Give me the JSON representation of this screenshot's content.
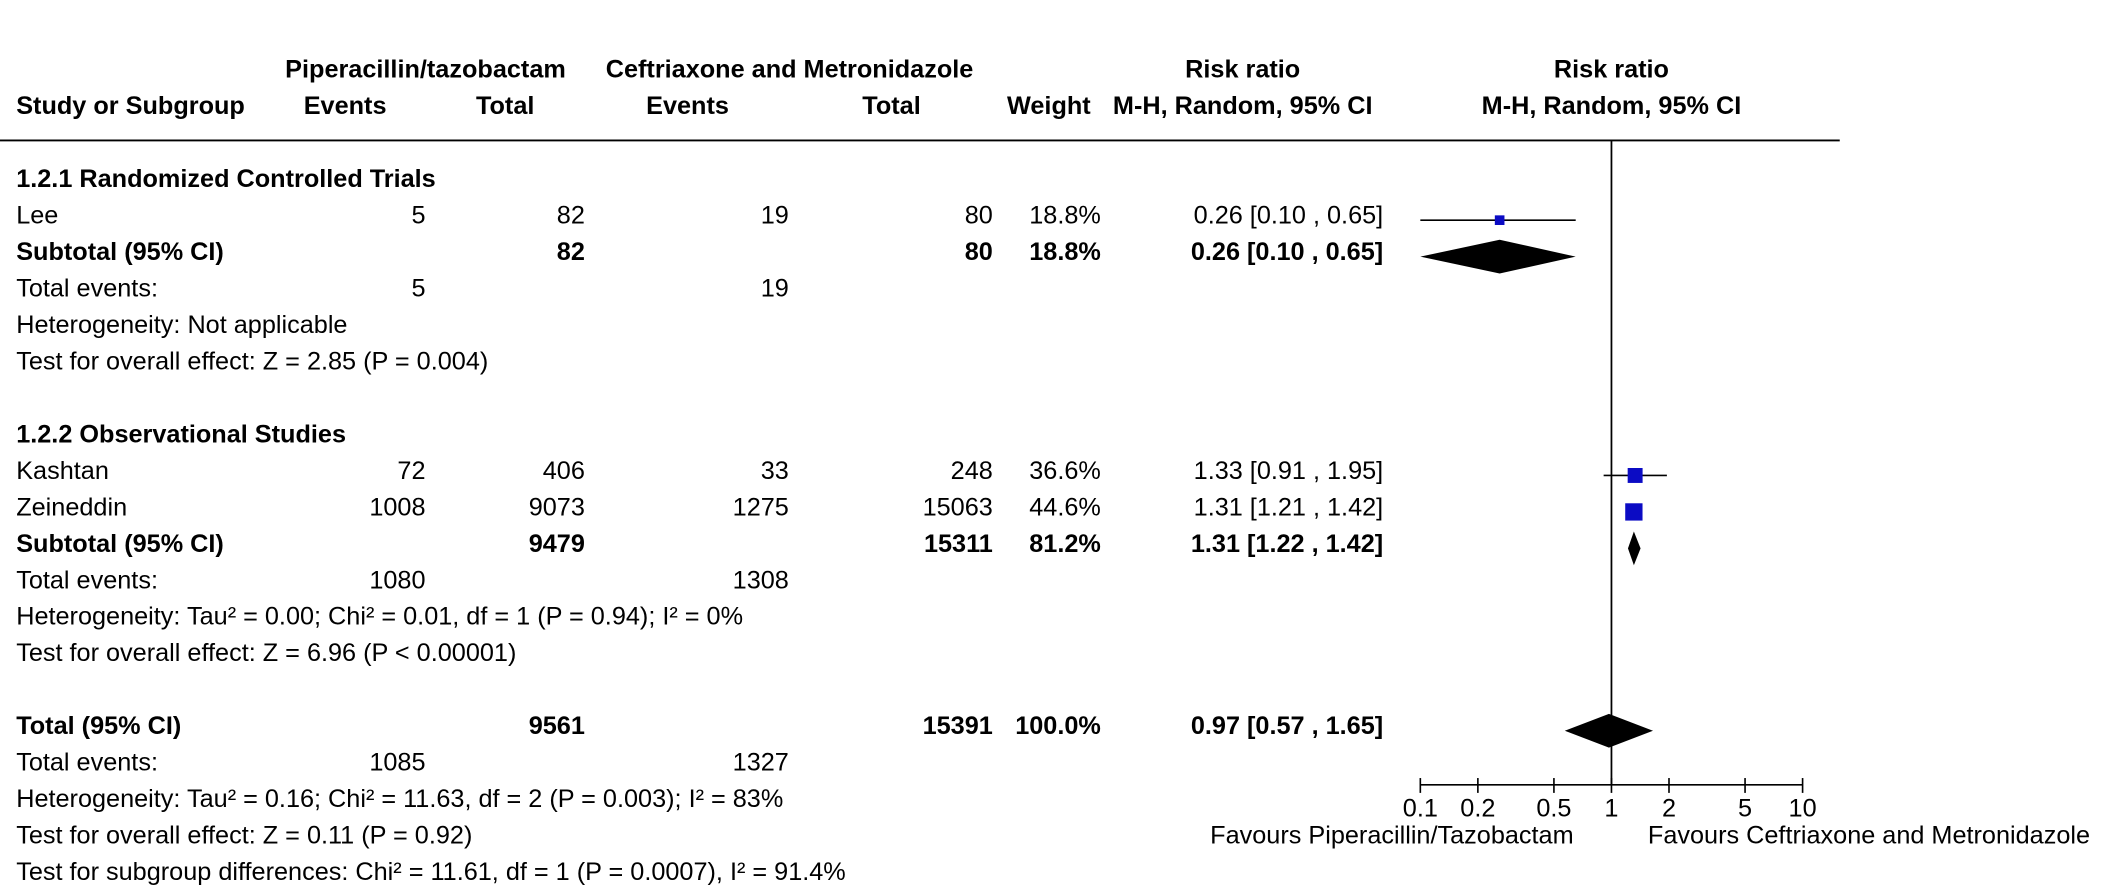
{
  "colors": {
    "study_marker": "#0b0bc4",
    "pooled_marker": "#000000",
    "lines": "#000000"
  },
  "chart_data": {
    "type": "scatter",
    "x_scale": "log",
    "xlim": [
      0.1,
      10
    ],
    "reference_line": 1,
    "header": {
      "group1": "Piperacillin/tazobactam",
      "group2": "Ceftriaxone and Metronidazole",
      "study_col": "Study or Subgroup",
      "events1_col": "Events",
      "total1_col": "Total",
      "events2_col": "Events",
      "total2_col": "Total",
      "weight_col": "Weight",
      "rr_col_title": "Risk ratio",
      "rr_col_method": "M-H, Random, 95% CI",
      "plot_title": "Risk ratio",
      "plot_method": "M-H, Random, 95% CI"
    },
    "sections": [
      {
        "heading": "1.2.1 Randomized Controlled Trials",
        "studies": [
          {
            "label": "Lee",
            "events1": 5,
            "total1": 82,
            "events2": 19,
            "total2": 80,
            "weight": "18.8%",
            "rr_ci": "0.26 [0.10 , 0.65]",
            "rr": 0.26,
            "ci": [
              0.1,
              0.65
            ]
          }
        ],
        "subtotal": {
          "label": "Subtotal (95% CI)",
          "total1": 82,
          "total2": 80,
          "weight": "18.8%",
          "rr_ci": "0.26 [0.10 , 0.65]",
          "rr": 0.26,
          "ci": [
            0.1,
            0.65
          ]
        },
        "total_events": {
          "label": "Total events:",
          "events1": 5,
          "events2": 19
        },
        "heterogeneity": "Heterogeneity: Not applicable",
        "overall_effect": "Test for overall effect: Z = 2.85 (P = 0.004)"
      },
      {
        "heading": "1.2.2 Observational Studies",
        "studies": [
          {
            "label": "Kashtan",
            "events1": 72,
            "total1": 406,
            "events2": 33,
            "total2": 248,
            "weight": "36.6%",
            "rr_ci": "1.33 [0.91 , 1.95]",
            "rr": 1.33,
            "ci": [
              0.91,
              1.95
            ]
          },
          {
            "label": "Zeineddin",
            "events1": 1008,
            "total1": 9073,
            "events2": 1275,
            "total2": 15063,
            "weight": "44.6%",
            "rr_ci": "1.31 [1.21 , 1.42]",
            "rr": 1.31,
            "ci": [
              1.21,
              1.42
            ]
          }
        ],
        "subtotal": {
          "label": "Subtotal (95% CI)",
          "total1": 9479,
          "total2": 15311,
          "weight": "81.2%",
          "rr_ci": "1.31 [1.22 , 1.42]",
          "rr": 1.31,
          "ci": [
            1.22,
            1.42
          ]
        },
        "total_events": {
          "label": "Total events:",
          "events1": 1080,
          "events2": 1308
        },
        "heterogeneity": "Heterogeneity: Tau² = 0.00; Chi² = 0.01, df = 1 (P = 0.94); I² = 0%",
        "overall_effect": "Test for overall effect: Z = 6.96 (P < 0.00001)"
      }
    ],
    "overall": {
      "label": "Total (95% CI)",
      "total1": 9561,
      "total2": 15391,
      "weight": "100.0%",
      "rr_ci": "0.97 [0.57 , 1.65]",
      "rr": 0.97,
      "ci": [
        0.57,
        1.65
      ]
    },
    "overall_events": {
      "label": "Total events:",
      "events1": 1085,
      "events2": 1327
    },
    "overall_heterogeneity": "Heterogeneity: Tau² = 0.16; Chi² = 11.63, df = 2 (P = 0.003); I² = 83%",
    "overall_effect": "Test for overall effect: Z = 0.11 (P = 0.92)",
    "subgroup_differences": "Test for subgroup differences: Chi² = 11.61, df = 1 (P = 0.0007), I² = 91.4%",
    "x_ticks": [
      "0.1",
      "0.2",
      "0.5",
      "1",
      "2",
      "5",
      "10"
    ],
    "favours_left": "Favours Piperacillin/Tazobactam",
    "favours_right": "Favours Ceftriaxone and Metronidazole"
  }
}
